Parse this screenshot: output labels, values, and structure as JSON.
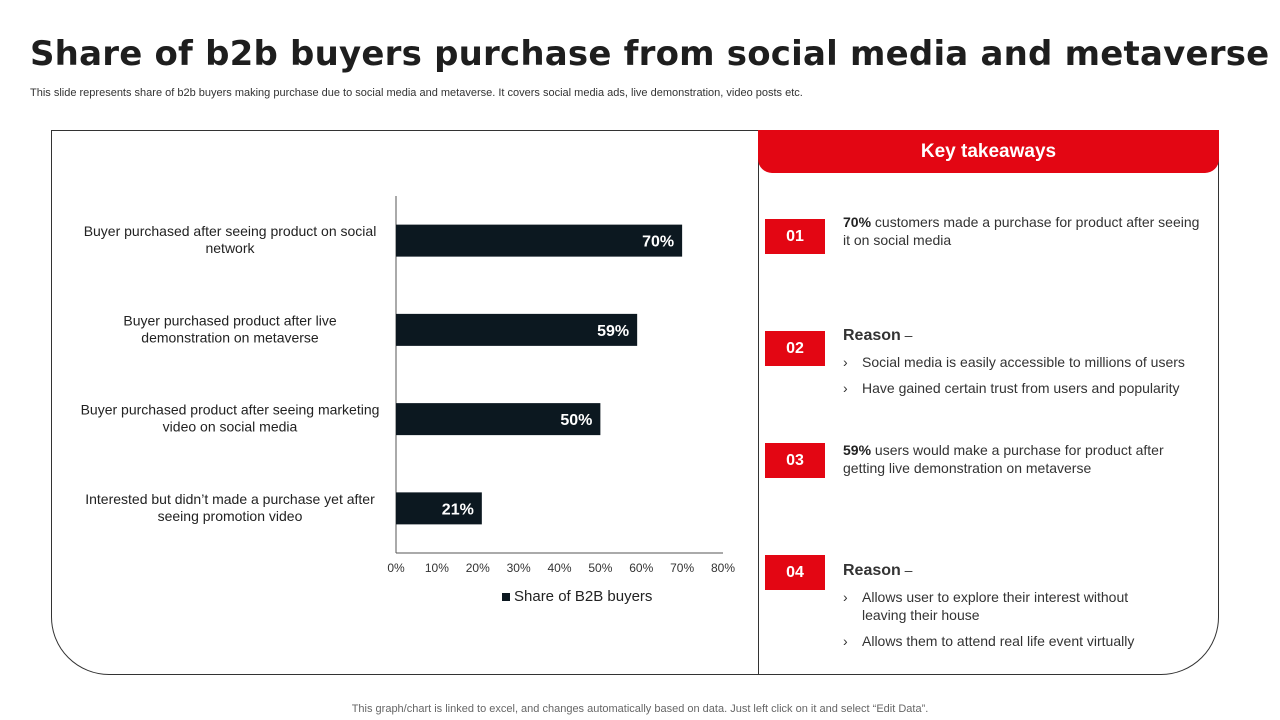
{
  "slide": {
    "title": "Share of b2b buyers purchase from social media and metaverse",
    "subtitle": "This slide represents share of b2b buyers making purchase due to social media and metaverse. It covers social media ads, live demonstration, video posts etc.",
    "footer": "This graph/chart is linked to excel,  and changes automatically based on data. Just left click on it and select “Edit Data”."
  },
  "chart_data": {
    "type": "bar",
    "orientation": "horizontal",
    "categories": [
      "Buyer purchased after seeing product on social network",
      "Buyer purchased product after live demonstration on metaverse",
      "Buyer purchased product after seeing marketing video on social media",
      "Interested but didn’t made a purchase yet after seeing promotion video"
    ],
    "category_lines": [
      [
        "Buyer purchased after seeing product on social",
        "network"
      ],
      [
        "Buyer purchased product after live",
        "demonstration on metaverse"
      ],
      [
        "Buyer purchased product after seeing marketing",
        "video on social media"
      ],
      [
        "Interested but didn’t made a purchase yet after",
        "seeing promotion video"
      ]
    ],
    "series": [
      {
        "name": "Share of B2B buyers",
        "values": [
          70,
          59,
          50,
          21
        ],
        "color": "#0c1820"
      }
    ],
    "data_labels": [
      "70%",
      "59%",
      "50%",
      "21%"
    ],
    "xlim": [
      0,
      80
    ],
    "x_ticks": [
      "0%",
      "10%",
      "20%",
      "30%",
      "40%",
      "50%",
      "60%",
      "70%",
      "80%"
    ],
    "grid": false,
    "legend": "bottom"
  },
  "takeaways": {
    "header": "Key takeaways",
    "accent": "#e30613",
    "items": [
      {
        "num": "01",
        "bold": "70%",
        "text": " customers made a purchase for product after seeing it on social media"
      },
      {
        "num": "02",
        "reason": "Reason",
        "dash": " –",
        "bullets": [
          "Social media is easily accessible to millions of users",
          "Have gained certain trust from users and popularity"
        ]
      },
      {
        "num": "03",
        "bold": "59%",
        "text": " users would make a purchase for product after getting live demonstration on metaverse"
      },
      {
        "num": "04",
        "reason": "Reason",
        "dash": " –",
        "bullets": [
          "Allows user to explore their interest without leaving their house",
          "Allows them to attend real life event virtually"
        ]
      }
    ],
    "chevron": "›"
  }
}
